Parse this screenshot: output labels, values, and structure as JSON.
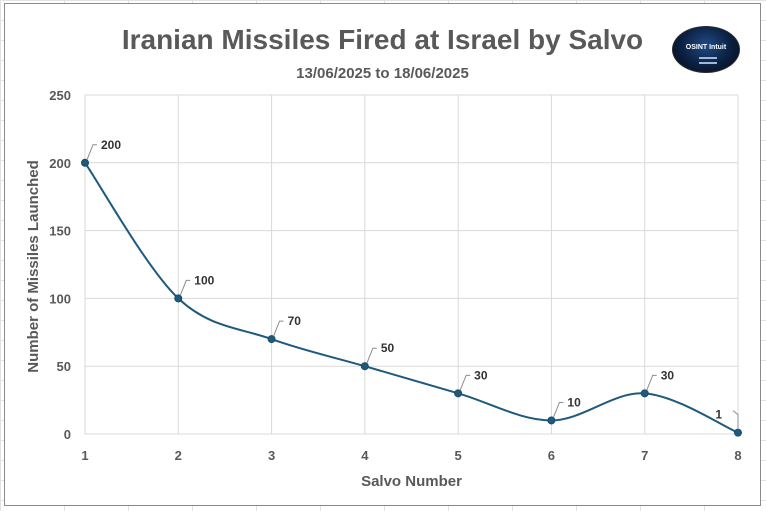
{
  "chart_data": {
    "type": "line",
    "title": "Iranian Missiles Fired at Israel by Salvo",
    "subtitle": "13/06/2025 to 18/06/2025",
    "xlabel": "Salvo Number",
    "ylabel": "Number of Missiles Launched",
    "categories": [
      "1",
      "2",
      "3",
      "4",
      "5",
      "6",
      "7",
      "8"
    ],
    "x": [
      1,
      2,
      3,
      4,
      5,
      6,
      7,
      8
    ],
    "series": [
      {
        "values": [
          200,
          100,
          70,
          50,
          30,
          10,
          30,
          1
        ]
      }
    ],
    "ylim": [
      0,
      250
    ],
    "yticks": [
      0,
      50,
      100,
      150,
      200,
      250
    ],
    "grid": true,
    "smooth": true,
    "line_color": "#1f5a7e",
    "data_labels": true
  },
  "logo": {
    "text": "OSINT Intuit",
    "icon": "globe-logo"
  }
}
